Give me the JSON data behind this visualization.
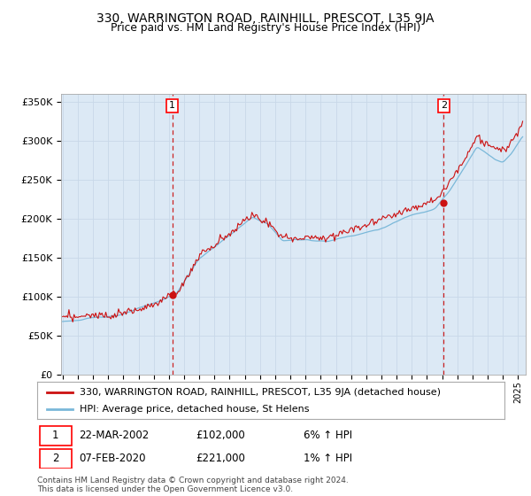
{
  "title": "330, WARRINGTON ROAD, RAINHILL, PRESCOT, L35 9JA",
  "subtitle": "Price paid vs. HM Land Registry's House Price Index (HPI)",
  "legend_line1": "330, WARRINGTON ROAD, RAINHILL, PRESCOT, L35 9JA (detached house)",
  "legend_line2": "HPI: Average price, detached house, St Helens",
  "footer": "Contains HM Land Registry data © Crown copyright and database right 2024.\nThis data is licensed under the Open Government Licence v3.0.",
  "sale1_date_text": "22-MAR-2002",
  "sale1_price_text": "£102,000",
  "sale1_hpi_text": "6% ↑ HPI",
  "sale2_date_text": "07-FEB-2020",
  "sale2_price_text": "£221,000",
  "sale2_hpi_text": "1% ↑ HPI",
  "sale1_x": 2002.22,
  "sale1_y": 102000,
  "sale2_x": 2020.1,
  "sale2_y": 221000,
  "hpi_color": "#7ab8d9",
  "price_color": "#cc1111",
  "vline_color": "#cc2222",
  "grid_color": "#c8d8e8",
  "plot_bg": "#dce9f5",
  "ylim": [
    0,
    360000
  ],
  "xlim_start": 1994.9,
  "xlim_end": 2025.5
}
